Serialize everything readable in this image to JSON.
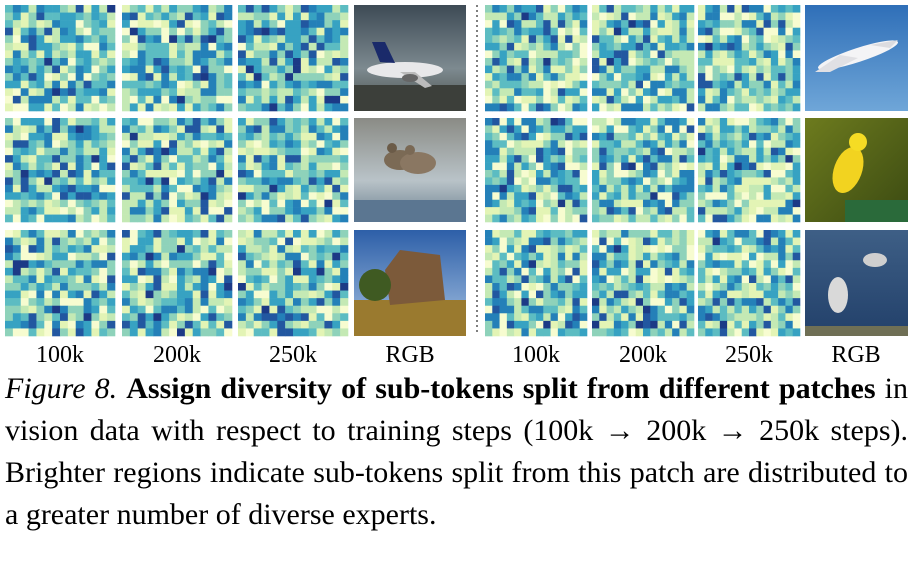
{
  "figure": {
    "columns": [
      "100k",
      "200k",
      "250k",
      "RGB",
      "100k",
      "200k",
      "250k",
      "RGB"
    ]
  },
  "caption": {
    "label": "Figure 8.",
    "bold": "Assign diversity of sub-tokens split from different patches",
    "text": " in vision data with respect to training steps (100k → 200k → 250k steps). Brighter regions indicate sub-tokens split from this patch are distributed to a greater number of diverse experts."
  }
}
